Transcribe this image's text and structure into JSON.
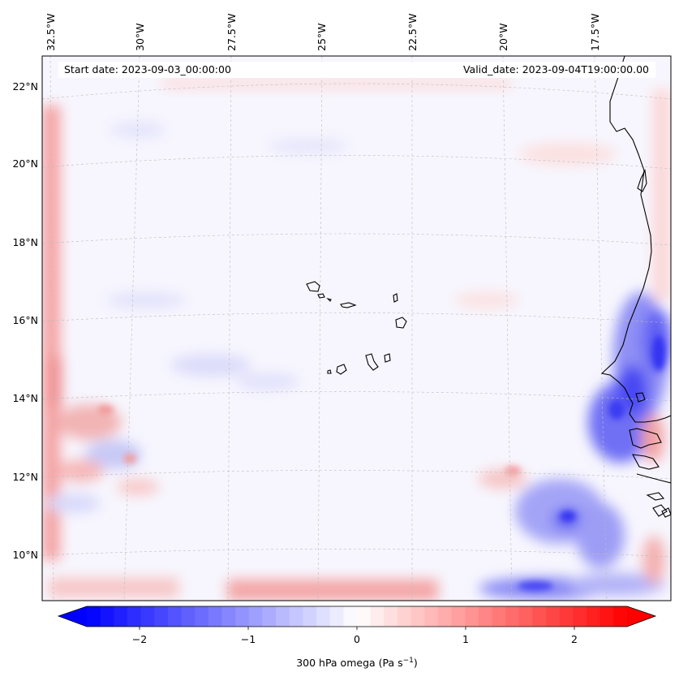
{
  "map": {
    "start_date": "Start date: 2023-09-03_00:00:00",
    "valid_date": "Valid_date: 2023-09-04T19:00:00.00",
    "lon_labels": [
      "32.5°W",
      "30°W",
      "27.5°W",
      "25°W",
      "22.5°W",
      "20°W",
      "17.5°W"
    ],
    "lat_labels": [
      "22°N",
      "20°N",
      "18°N",
      "16°N",
      "14°N",
      "12°N",
      "10°N"
    ],
    "features": [
      "cape-verde-islands",
      "west-african-coastline"
    ]
  },
  "colorbar": {
    "ticks": [
      "−2",
      "−1",
      "0",
      "1",
      "2"
    ],
    "label_main": "300 hPa omega (Pa s",
    "label_sup": "−1",
    "label_close": ")",
    "vmin": -2.75,
    "vmax": 2.75,
    "colormap": "bwr",
    "neg_color": "#0000ff",
    "pos_color": "#ff0000"
  }
}
